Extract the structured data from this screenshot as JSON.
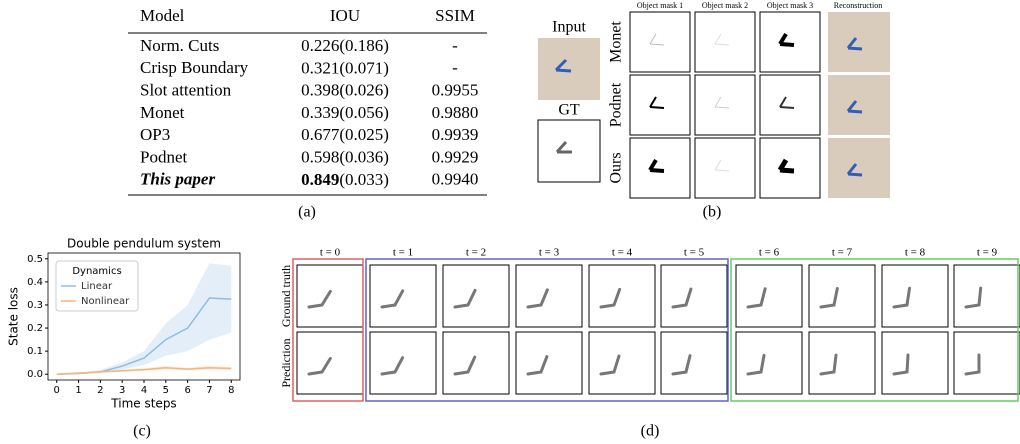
{
  "table": {
    "header": [
      "Model",
      "IOU",
      "SSIM"
    ],
    "rows": [
      {
        "model": "Norm. Cuts",
        "iou": "0.226",
        "iou_sd": "(0.186)",
        "ssim": "-"
      },
      {
        "model": "Crisp Boundary",
        "iou": "0.321",
        "iou_sd": "(0.071)",
        "ssim": "-"
      },
      {
        "model": "Slot attention",
        "iou": "0.398",
        "iou_sd": "(0.026)",
        "ssim": "0.9955"
      },
      {
        "model": "Monet",
        "iou": "0.339",
        "iou_sd": "(0.056)",
        "ssim": "0.9880"
      },
      {
        "model": "OP3",
        "iou": "0.677",
        "iou_sd": "(0.025)",
        "ssim": "0.9939"
      },
      {
        "model": "Podnet",
        "iou": "0.598",
        "iou_sd": "(0.036)",
        "ssim": "0.9929"
      },
      {
        "model": "This paper",
        "iou": "0.849",
        "iou_sd": "(0.033)",
        "ssim": "0.9940"
      }
    ],
    "highlight_row": 6,
    "caption": "(a)"
  },
  "figure_b": {
    "input_label": "Input",
    "gt_label": "GT",
    "columns": [
      "Object mask 1",
      "Object mask 2",
      "Object mask 3",
      "Reconstruction"
    ],
    "rows": [
      "Monet",
      "Podnet",
      "Ours"
    ],
    "caption": "(b)"
  },
  "chart_data": {
    "type": "line",
    "title": "Double pendulum system",
    "x": [
      0,
      1,
      2,
      3,
      4,
      5,
      6,
      7,
      8
    ],
    "xlabel": "Time steps",
    "ylabel": "State loss",
    "xlim": [
      -0.4,
      8.4
    ],
    "ylim": [
      -0.025,
      0.525
    ],
    "xticks": [
      0,
      1,
      2,
      3,
      4,
      5,
      6,
      7,
      8
    ],
    "yticks": [
      {
        "value": 0,
        "label": "0.0"
      },
      0.1,
      0.2,
      0.3,
      0.4,
      0.5
    ],
    "legend_title": "Dynamics",
    "legend": "upper left",
    "series": [
      {
        "name": "Linear",
        "color": "#8fbde2",
        "values": [
          0,
          0.003,
          0.01,
          0.035,
          0.07,
          0.15,
          0.2,
          0.33,
          0.325
        ],
        "lower": [
          0,
          0,
          0.005,
          0.02,
          0.04,
          0.08,
          0.1,
          0.15,
          0.18
        ],
        "upper": [
          0,
          0.006,
          0.02,
          0.05,
          0.1,
          0.22,
          0.3,
          0.48,
          0.47
        ]
      },
      {
        "name": "Nonlinear",
        "color": "#f7b47c",
        "values": [
          0,
          0.005,
          0.01,
          0.015,
          0.02,
          0.028,
          0.022,
          0.028,
          0.025
        ],
        "lower": [
          0,
          0.003,
          0.007,
          0.01,
          0.014,
          0.02,
          0.016,
          0.02,
          0.018
        ],
        "upper": [
          0,
          0.007,
          0.013,
          0.02,
          0.026,
          0.036,
          0.028,
          0.036,
          0.032
        ]
      }
    ],
    "caption": "(c)"
  },
  "figure_d": {
    "steps": [
      "t = 0",
      "t = 1",
      "t = 2",
      "t = 3",
      "t = 4",
      "t = 5",
      "t = 6",
      "t = 7",
      "t = 8",
      "t = 9"
    ],
    "rows": [
      "Ground truth",
      "Prediction"
    ],
    "caption": "(d)"
  }
}
